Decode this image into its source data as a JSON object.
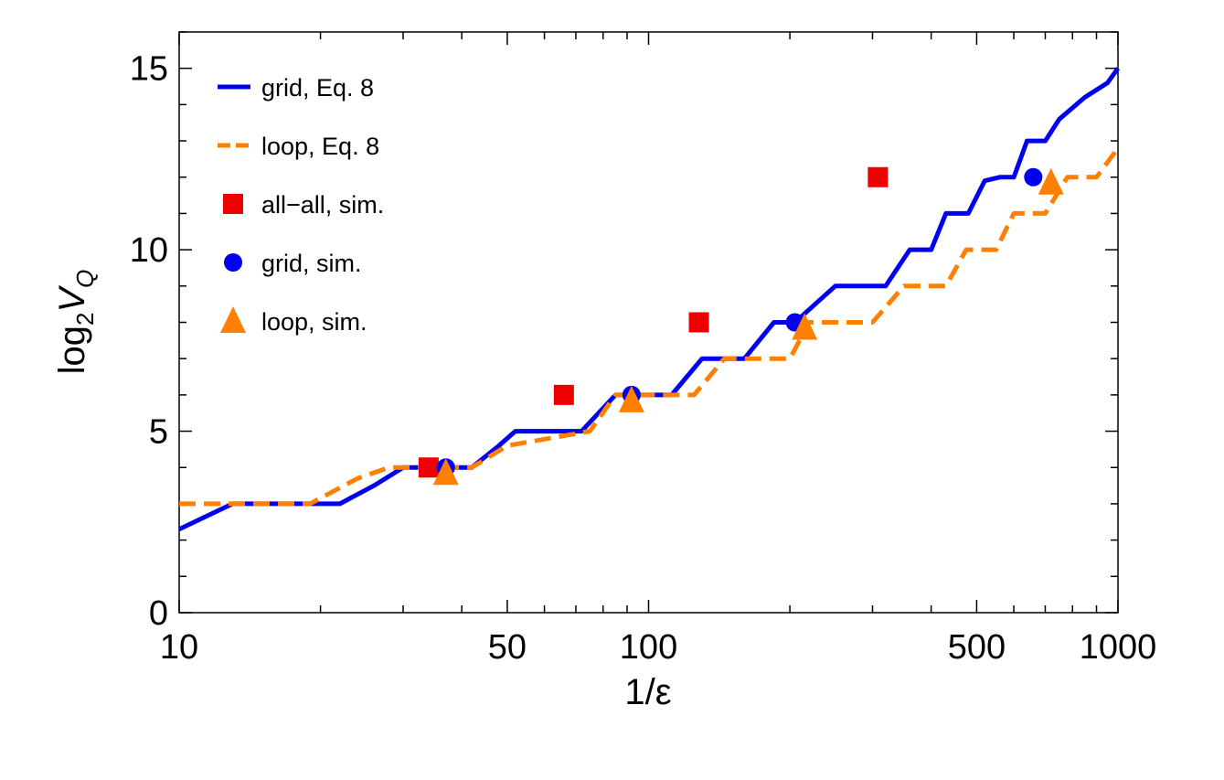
{
  "chart_data": {
    "type": "line",
    "xlabel": "1/ε",
    "ylabel": "log₂V_Q",
    "ylabel_parts": {
      "base": "log",
      "base_sub": "2",
      "var": "V",
      "var_sub": "Q"
    },
    "x_scale": "log",
    "xlim": [
      10,
      1000
    ],
    "ylim": [
      0,
      16
    ],
    "x_ticks": [
      10,
      50,
      100,
      500,
      1000
    ],
    "x_tick_labels": [
      "10",
      "50",
      "100",
      "500",
      "1000"
    ],
    "y_ticks": [
      0,
      5,
      10,
      15
    ],
    "y_tick_labels": [
      "0",
      "5",
      "10",
      "15"
    ],
    "grid": false,
    "legend_position": "top-left",
    "colors": {
      "blue": "#0000ee",
      "orange": "#ff8000",
      "red": "#ee0000"
    },
    "series": [
      {
        "name": "grid, Eq. 8",
        "kind": "line",
        "style": "solid",
        "color": "#0000ee",
        "x": [
          10,
          13,
          22,
          26,
          30,
          37,
          42,
          48,
          52,
          72,
          85,
          112,
          130,
          160,
          185,
          205,
          250,
          320,
          360,
          400,
          430,
          480,
          520,
          560,
          600,
          640,
          700,
          750,
          850,
          950,
          1000
        ],
        "y": [
          2.3,
          3,
          3,
          3.5,
          4,
          4,
          4,
          4.6,
          5,
          5,
          6,
          6,
          7,
          7,
          8,
          8,
          9,
          9,
          10,
          10,
          11,
          11,
          11.9,
          12,
          12,
          13,
          13,
          13.6,
          14.2,
          14.6,
          15
        ]
      },
      {
        "name": "loop, Eq. 8",
        "kind": "line",
        "style": "dashed",
        "color": "#ff8000",
        "x": [
          10,
          19,
          24,
          28,
          42,
          50,
          75,
          85,
          125,
          145,
          200,
          220,
          300,
          350,
          430,
          475,
          550,
          600,
          700,
          780,
          900,
          1000
        ],
        "y": [
          3,
          3,
          3.7,
          4,
          4,
          4.6,
          5,
          6,
          6,
          7,
          7,
          8,
          8,
          9,
          9,
          10,
          10,
          11,
          11,
          12,
          12,
          12.8
        ]
      },
      {
        "name": "all−all, sim.",
        "kind": "marker",
        "marker": "square",
        "color": "#ee0000",
        "x": [
          34,
          66,
          128,
          308
        ],
        "y": [
          4,
          6,
          8,
          12
        ]
      },
      {
        "name": "grid, sim.",
        "kind": "marker",
        "marker": "circle",
        "color": "#0000ee",
        "x": [
          37,
          92,
          205,
          660
        ],
        "y": [
          4,
          6,
          8,
          12
        ]
      },
      {
        "name": "loop, sim.",
        "kind": "marker",
        "marker": "triangle",
        "color": "#ff8000",
        "x": [
          37,
          92,
          215,
          720
        ],
        "y": [
          3.85,
          5.85,
          7.85,
          11.85
        ]
      }
    ]
  }
}
